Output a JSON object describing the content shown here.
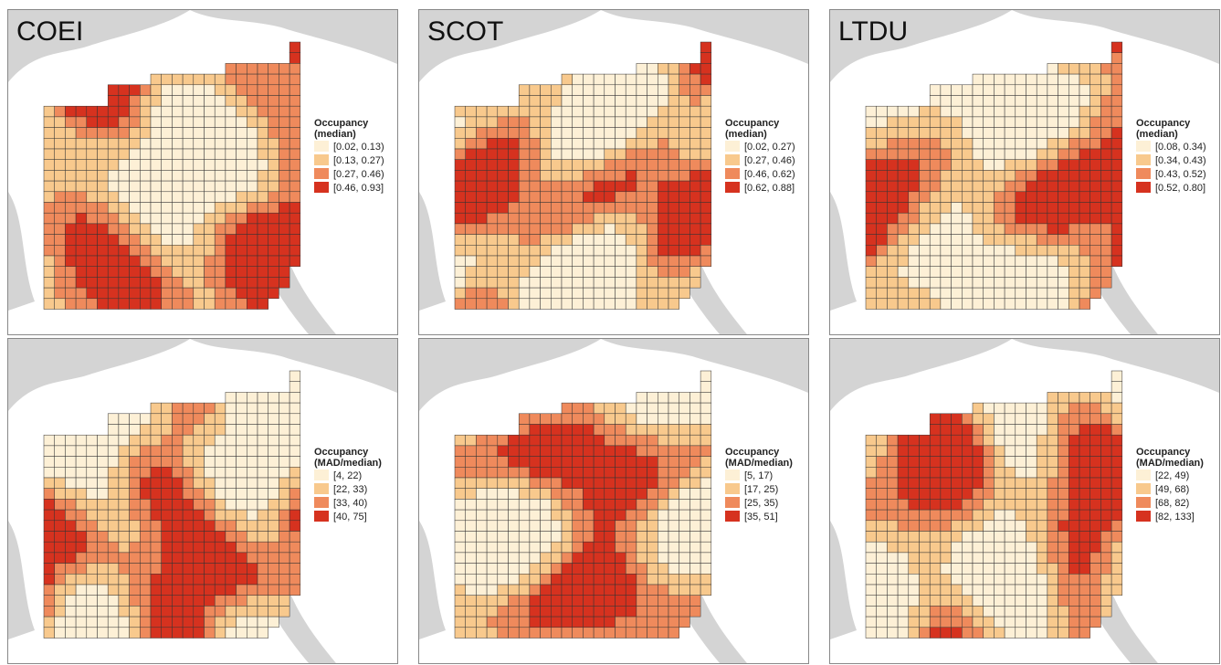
{
  "panels": [
    {
      "title": "COEI",
      "legend_title": [
        "Occupancy",
        "(median)"
      ],
      "classes": [
        "[0.02, 0.13)",
        "[0.13, 0.27)",
        "[0.27, 0.46)",
        "[0.46, 0.93]"
      ]
    },
    {
      "title": "SCOT",
      "legend_title": [
        "Occupancy",
        "(median)"
      ],
      "classes": [
        "[0.02, 0.27)",
        "[0.27, 0.46)",
        "[0.46, 0.62)",
        "[0.62, 0.88]"
      ]
    },
    {
      "title": "LTDU",
      "legend_title": [
        "Occupancy",
        "(median)"
      ],
      "classes": [
        "[0.08, 0.34)",
        "[0.34, 0.43)",
        "[0.43, 0.52)",
        "[0.52, 0.80]"
      ]
    },
    {
      "legend_title": [
        "Occupancy",
        "(MAD/median)"
      ],
      "classes": [
        "[4, 22)",
        "[22, 33)",
        "[33, 40)",
        "[40, 75]"
      ]
    },
    {
      "legend_title": [
        "Occupancy",
        "(MAD/median)"
      ],
      "classes": [
        "[5, 17)",
        "[17, 25)",
        "[25, 35)",
        "[35, 51]"
      ]
    },
    {
      "legend_title": [
        "Occupancy",
        "(MAD/median)"
      ],
      "classes": [
        "[22, 49)",
        "[49, 68)",
        "[68, 82)",
        "[82, 133]"
      ]
    }
  ],
  "colors": [
    "#fdf0d6",
    "#f8c98d",
    "#ef8a5c",
    "#d6321f"
  ]
}
